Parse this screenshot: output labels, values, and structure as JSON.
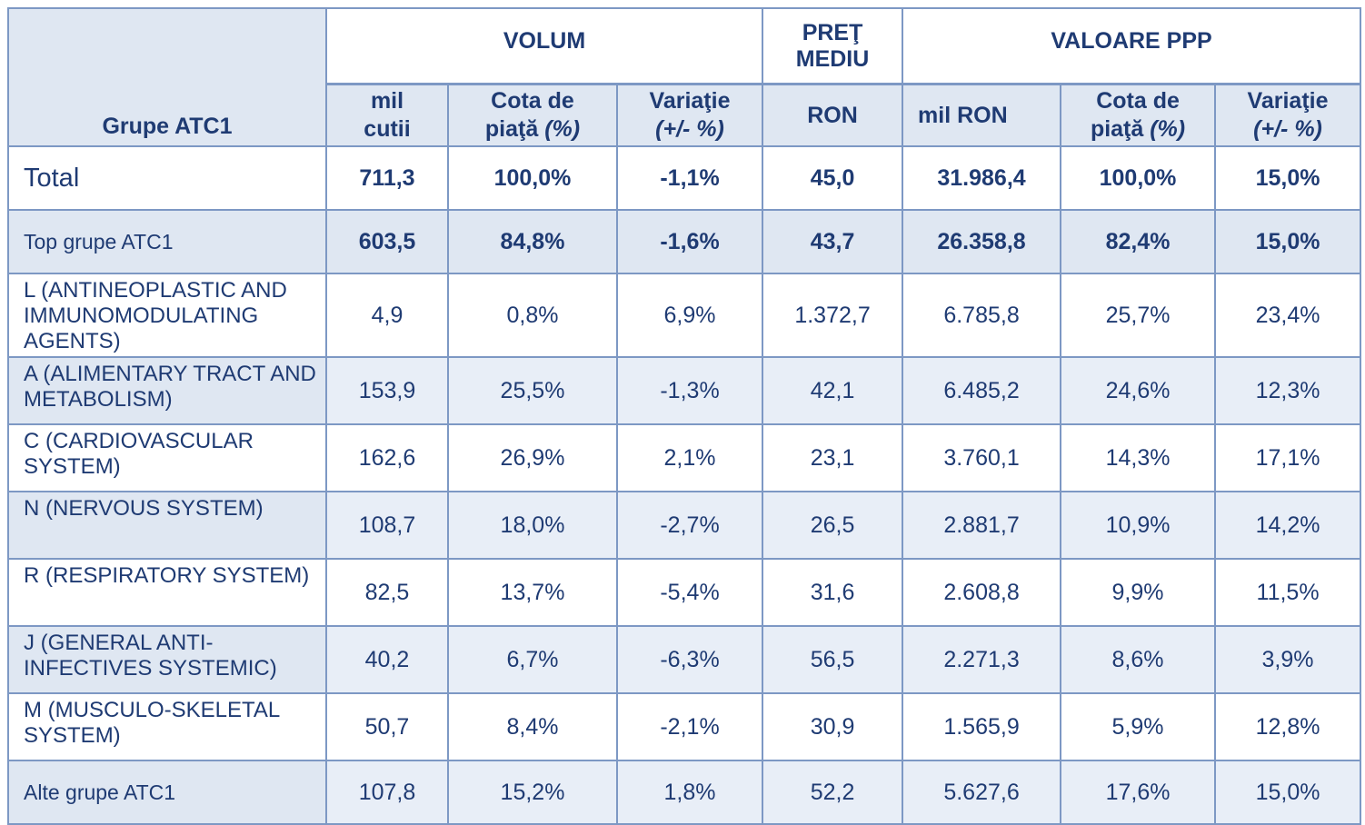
{
  "header": {
    "group_col": "Grupe ATC1",
    "volum": "VOLUM",
    "pret_line1": "PREŢ",
    "pret_line2": "MEDIU",
    "valoare": "VALOARE PPP",
    "sub": {
      "mil_cutii_1": "mil",
      "mil_cutii_2": "cutii",
      "cota_1": "Cota de",
      "cota_2a": "piaţă ",
      "cota_2b": "(%)",
      "var_1": "Variaţie",
      "var_2": "(+/- %)",
      "ron": "RON",
      "mil_ron": "mil RON",
      "cota_v_1": "Cota de",
      "cota_v_2a": "piaţă ",
      "cota_v_2b": "(%)",
      "var_v_1": "Variaţie",
      "var_v_2": "(+/- %)"
    }
  },
  "rows": [
    {
      "name": "Total",
      "vol": "711,3",
      "cota": "100,0%",
      "var": "-1,1%",
      "ron": "45,0",
      "milron": "31.986,4",
      "cotav": "100,0%",
      "varv": "15,0%"
    },
    {
      "name": "Top grupe ATC1",
      "vol": "603,5",
      "cota": "84,8%",
      "var": "-1,6%",
      "ron": "43,7",
      "milron": "26.358,8",
      "cotav": "82,4%",
      "varv": "15,0%"
    },
    {
      "name": "L (ANTINEOPLASTIC AND IMMUNOMODULATING AGENTS)",
      "vol": "4,9",
      "cota": "0,8%",
      "var": "6,9%",
      "ron": "1.372,7",
      "milron": "6.785,8",
      "cotav": "25,7%",
      "varv": "23,4%"
    },
    {
      "name": "A (ALIMENTARY TRACT AND METABOLISM)",
      "vol": "153,9",
      "cota": "25,5%",
      "var": "-1,3%",
      "ron": "42,1",
      "milron": "6.485,2",
      "cotav": "24,6%",
      "varv": "12,3%"
    },
    {
      "name": "C (CARDIOVASCULAR SYSTEM)",
      "vol": "162,6",
      "cota": "26,9%",
      "var": "2,1%",
      "ron": "23,1",
      "milron": "3.760,1",
      "cotav": "14,3%",
      "varv": "17,1%"
    },
    {
      "name": "N (NERVOUS SYSTEM)",
      "vol": "108,7",
      "cota": "18,0%",
      "var": "-2,7%",
      "ron": "26,5",
      "milron": "2.881,7",
      "cotav": "10,9%",
      "varv": "14,2%"
    },
    {
      "name": "R (RESPIRATORY SYSTEM)",
      "vol": "82,5",
      "cota": "13,7%",
      "var": "-5,4%",
      "ron": "31,6",
      "milron": "2.608,8",
      "cotav": "9,9%",
      "varv": "11,5%"
    },
    {
      "name": "J (GENERAL ANTI-INFECTIVES SYSTEMIC)",
      "vol": "40,2",
      "cota": "6,7%",
      "var": "-6,3%",
      "ron": "56,5",
      "milron": "2.271,3",
      "cotav": "8,6%",
      "varv": "3,9%"
    },
    {
      "name": "M (MUSCULO-SKELETAL SYSTEM)",
      "vol": "50,7",
      "cota": "8,4%",
      "var": "-2,1%",
      "ron": "30,9",
      "milron": "1.565,9",
      "cotav": "5,9%",
      "varv": "12,8%"
    },
    {
      "name": "Alte grupe ATC1",
      "vol": "107,8",
      "cota": "15,2%",
      "var": "1,8%",
      "ron": "52,2",
      "milron": "5.627,6",
      "cotav": "17,6%",
      "varv": "15,0%"
    }
  ],
  "colors": {
    "text": "#1f3b73",
    "border": "#7d98c4",
    "band": "#dfe7f2",
    "band_light": "#e8eef7"
  }
}
